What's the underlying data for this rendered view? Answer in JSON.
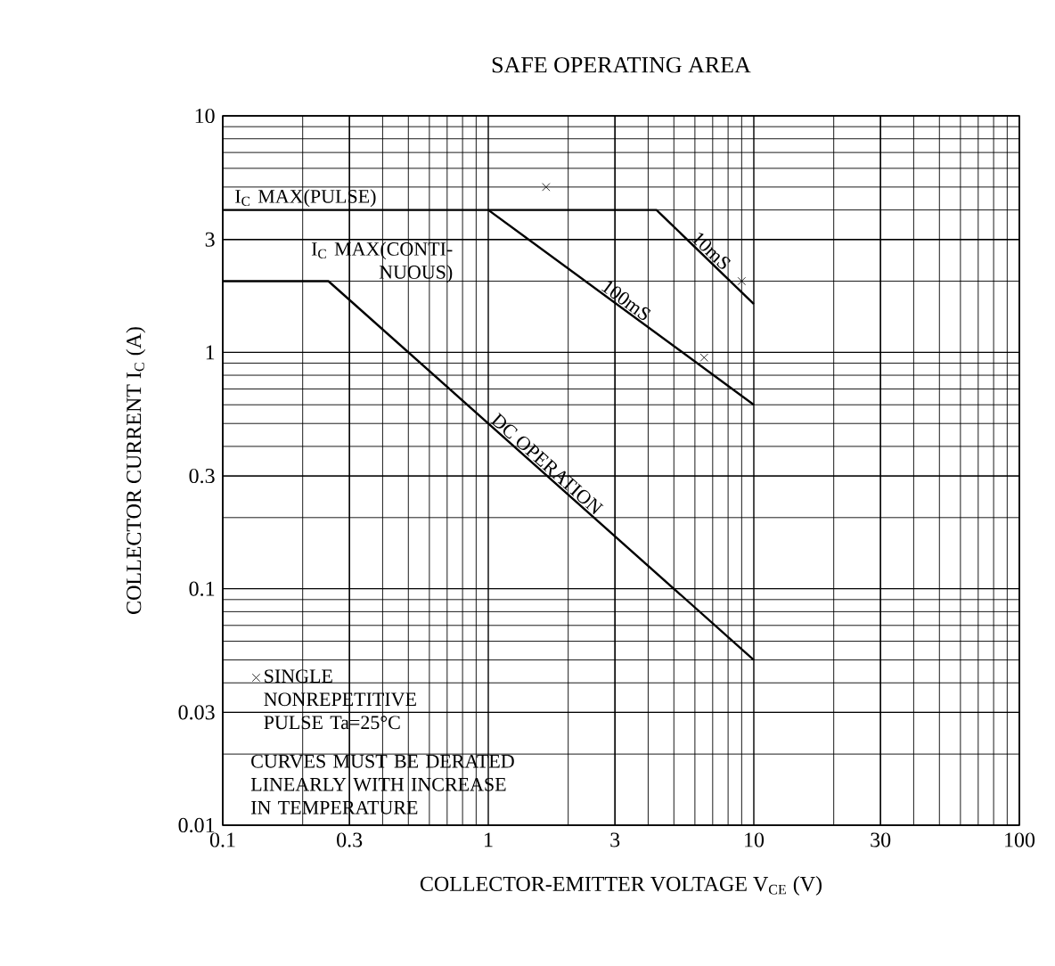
{
  "chart_data": {
    "type": "line",
    "title": "SAFE OPERATING AREA",
    "xlabel": "COLLECTOR-EMITTER VOLTAGE V$_{CE}$  (V)",
    "ylabel": "COLLECTOR CURRENT I$_{C}$  (A)",
    "log": "xy",
    "xlim": [
      0.1,
      100
    ],
    "ylim": [
      0.01,
      10
    ],
    "xticks": [
      0.1,
      0.3,
      1,
      3,
      10,
      30,
      100
    ],
    "yticks": [
      0.01,
      0.03,
      0.1,
      0.3,
      1,
      3,
      10
    ],
    "grid": true,
    "legend": "bottom left",
    "line_style": "solid",
    "series": [
      {
        "name": "10mS",
        "color": "#000000",
        "x": [
          1,
          4.3,
          10
        ],
        "values": [
          4,
          4,
          1.6
        ]
      },
      {
        "name": "100mS",
        "color": "#000000",
        "x": [
          0.1,
          1,
          10
        ],
        "values": [
          4,
          4,
          0.6
        ]
      },
      {
        "name": "DC OPERATION",
        "color": "#000000",
        "x": [
          0.1,
          0.25,
          10
        ],
        "values": [
          2,
          2,
          0.05
        ]
      },
      {
        "name": "SINGLE NONREPETITIVE PULSE Ta=25°C",
        "type": "scatter",
        "marker": "cross",
        "color": "#000000",
        "x": [
          1.65,
          9,
          6.5
        ],
        "values": [
          5,
          2,
          0.95
        ]
      }
    ],
    "annotations": [
      "I$_{C}$ MAX(PULSE)",
      "I$_{C}$ MAX(CONTI-NUOUS)",
      "CURVES MUST BE DERATED LINEARLY WITH INCREASE IN TEMPERATURE"
    ]
  }
}
